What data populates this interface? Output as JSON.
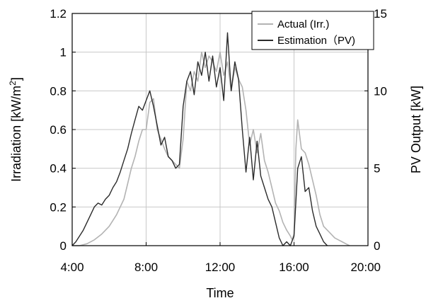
{
  "chart_data": {
    "type": "line",
    "xlabel": "Time",
    "ylabel": "Irradiation [kW/m",
    "ylabel_sup": "2",
    "ylabel_close": "]",
    "y2label": "PV Output  [kW]",
    "xlim": [
      4,
      20
    ],
    "ylim": [
      0,
      1.2
    ],
    "y2lim": [
      0,
      15
    ],
    "x_ticks": [
      {
        "value": 4,
        "label": "4:00"
      },
      {
        "value": 8,
        "label": "8:00"
      },
      {
        "value": 12,
        "label": "12:00"
      },
      {
        "value": 16,
        "label": "16:00"
      },
      {
        "value": 20,
        "label": "20:00"
      }
    ],
    "y_ticks": [
      {
        "value": 0,
        "label": "0"
      },
      {
        "value": 0.2,
        "label": "0.2"
      },
      {
        "value": 0.4,
        "label": "0.4"
      },
      {
        "value": 0.6,
        "label": "0.6"
      },
      {
        "value": 0.8,
        "label": "0.8"
      },
      {
        "value": 1.0,
        "label": "1"
      },
      {
        "value": 1.2,
        "label": "1.2"
      }
    ],
    "y2_ticks": [
      {
        "value": 0,
        "label": "0"
      },
      {
        "value": 5,
        "label": "5"
      },
      {
        "value": 10,
        "label": "10"
      },
      {
        "value": 15,
        "label": "15"
      }
    ],
    "grid": true,
    "legend_position": "top-right",
    "series": [
      {
        "name": "Actual  (Irr.)",
        "color": "#b3b3b3",
        "x": [
          4.0,
          4.4,
          4.8,
          5.2,
          5.6,
          6.0,
          6.4,
          6.8,
          7.0,
          7.2,
          7.4,
          7.6,
          7.8,
          8.0,
          8.2,
          8.4,
          8.6,
          8.8,
          9.0,
          9.2,
          9.4,
          9.6,
          9.8,
          10.0,
          10.2,
          10.4,
          10.6,
          10.8,
          11.0,
          11.2,
          11.4,
          11.6,
          11.8,
          12.0,
          12.2,
          12.4,
          12.6,
          12.8,
          13.0,
          13.2,
          13.4,
          13.6,
          13.8,
          14.0,
          14.2,
          14.4,
          14.6,
          14.8,
          15.0,
          15.2,
          15.4,
          15.6,
          15.8,
          15.9,
          16.0,
          16.1,
          16.2,
          16.4,
          16.6,
          16.8,
          17.0,
          17.2,
          17.4,
          17.6,
          17.8,
          18.0,
          18.2,
          18.4,
          18.6,
          18.8,
          19.0
        ],
        "y": [
          0.0,
          0.0,
          0.01,
          0.03,
          0.06,
          0.1,
          0.16,
          0.24,
          0.32,
          0.4,
          0.46,
          0.54,
          0.6,
          0.6,
          0.74,
          0.76,
          0.6,
          0.55,
          0.5,
          0.46,
          0.44,
          0.42,
          0.4,
          0.55,
          0.85,
          0.8,
          0.9,
          0.85,
          1.0,
          0.92,
          0.98,
          0.95,
          0.9,
          1.0,
          0.88,
          0.95,
          0.8,
          0.92,
          0.86,
          0.82,
          0.7,
          0.52,
          0.6,
          0.48,
          0.58,
          0.44,
          0.38,
          0.3,
          0.22,
          0.18,
          0.12,
          0.08,
          0.05,
          0.03,
          0.06,
          0.5,
          0.65,
          0.5,
          0.48,
          0.42,
          0.34,
          0.26,
          0.16,
          0.1,
          0.08,
          0.06,
          0.04,
          0.03,
          0.02,
          0.01,
          0.0
        ]
      },
      {
        "name": "Estimation（PV)",
        "color": "#2b2b2b",
        "x": [
          4.0,
          4.2,
          4.4,
          4.6,
          4.8,
          5.0,
          5.2,
          5.4,
          5.6,
          5.8,
          6.0,
          6.2,
          6.4,
          6.6,
          6.8,
          7.0,
          7.2,
          7.4,
          7.6,
          7.8,
          8.0,
          8.2,
          8.4,
          8.6,
          8.8,
          9.0,
          9.2,
          9.4,
          9.6,
          9.8,
          10.0,
          10.2,
          10.4,
          10.6,
          10.8,
          11.0,
          11.2,
          11.4,
          11.6,
          11.8,
          12.0,
          12.2,
          12.4,
          12.6,
          12.8,
          13.0,
          13.2,
          13.4,
          13.6,
          13.8,
          14.0,
          14.2,
          14.4,
          14.6,
          14.8,
          15.0,
          15.2,
          15.4,
          15.6,
          15.8,
          16.0,
          16.2,
          16.4,
          16.6,
          16.8,
          17.0,
          17.2,
          17.4,
          17.6,
          17.8
        ],
        "y": [
          0.0,
          0.02,
          0.05,
          0.08,
          0.12,
          0.16,
          0.2,
          0.22,
          0.21,
          0.24,
          0.26,
          0.3,
          0.33,
          0.38,
          0.44,
          0.5,
          0.58,
          0.65,
          0.72,
          0.7,
          0.75,
          0.8,
          0.72,
          0.62,
          0.52,
          0.56,
          0.46,
          0.44,
          0.4,
          0.42,
          0.72,
          0.85,
          0.9,
          0.78,
          0.95,
          0.88,
          1.0,
          0.85,
          0.98,
          0.82,
          0.92,
          0.75,
          1.1,
          0.8,
          0.95,
          0.86,
          0.6,
          0.38,
          0.56,
          0.34,
          0.54,
          0.36,
          0.3,
          0.24,
          0.2,
          0.12,
          0.04,
          0.0,
          0.02,
          0.0,
          0.05,
          0.4,
          0.46,
          0.28,
          0.3,
          0.18,
          0.1,
          0.06,
          0.02,
          0.0
        ]
      }
    ]
  }
}
